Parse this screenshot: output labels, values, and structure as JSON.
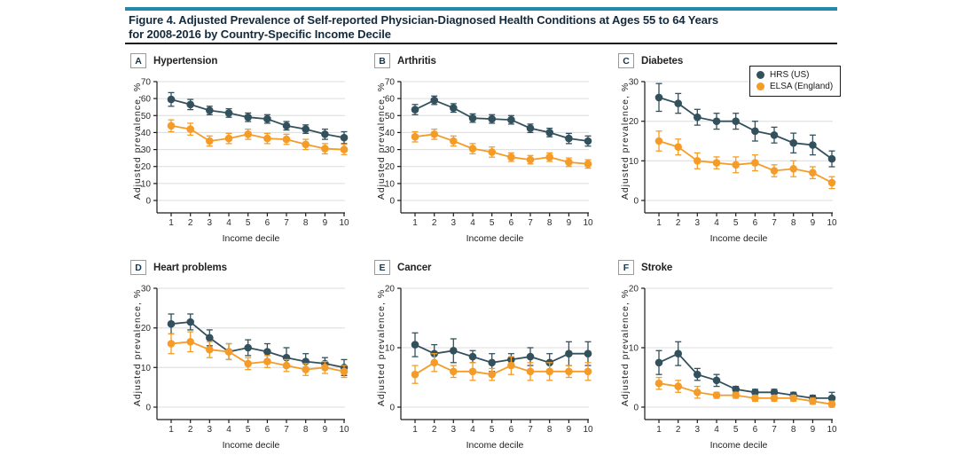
{
  "figure": {
    "title_line1": "Figure 4. Adjusted Prevalence of Self-reported Physician-Diagnosed Health Conditions at Ages 55 to 64 Years",
    "title_line2": "for 2008-2016 by Country-Specific Income Decile"
  },
  "colors": {
    "header_rule": "#2389AC",
    "hrs_us": "#33515D",
    "elsa_england": "#F59C28",
    "gridline": "#DCDCDC"
  },
  "legend": {
    "position": "top-right-of-panel-C",
    "entries": [
      {
        "label": "HRS (US)",
        "color": "#33515D"
      },
      {
        "label": "ELSA (England)",
        "color": "#F59C28"
      }
    ]
  },
  "chart_data": [
    {
      "type": "line",
      "panel_label": "A",
      "title": "Hypertension",
      "xlabel": "Income decile",
      "ylabel": "Adjusted prevalence, %",
      "x": [
        1,
        2,
        3,
        4,
        5,
        6,
        7,
        8,
        9,
        10
      ],
      "ylim": [
        0,
        70
      ],
      "yticks": [
        0,
        10,
        20,
        30,
        40,
        50,
        60,
        70
      ],
      "series": [
        {
          "name": "HRS (US)",
          "color": "#33515D",
          "values": [
            59.5,
            56.5,
            53,
            51.5,
            49,
            48,
            44,
            42,
            39,
            37
          ],
          "ci": [
            4,
            3,
            2.5,
            2.5,
            2.5,
            2.5,
            2.5,
            2.5,
            3,
            3.5
          ]
        },
        {
          "name": "ELSA (England)",
          "color": "#F59C28",
          "values": [
            44,
            42,
            35,
            36.5,
            39,
            36.5,
            36,
            33,
            30.5,
            30
          ],
          "ci": [
            3.5,
            3.5,
            3,
            3,
            3,
            3,
            3,
            3,
            3,
            3
          ]
        }
      ]
    },
    {
      "type": "line",
      "panel_label": "B",
      "title": "Arthritis",
      "xlabel": "Income decile",
      "ylabel": "Adjusted prevalence, %",
      "x": [
        1,
        2,
        3,
        4,
        5,
        6,
        7,
        8,
        9,
        10
      ],
      "ylim": [
        0,
        70
      ],
      "yticks": [
        0,
        10,
        20,
        30,
        40,
        50,
        60,
        70
      ],
      "series": [
        {
          "name": "HRS (US)",
          "color": "#33515D",
          "values": [
            53.5,
            59,
            54.5,
            48.5,
            48,
            47.5,
            42.5,
            40,
            36.5,
            35
          ],
          "ci": [
            3,
            2.5,
            2.5,
            2.5,
            2.5,
            2.5,
            2.5,
            2.5,
            3,
            3
          ]
        },
        {
          "name": "ELSA (England)",
          "color": "#F59C28",
          "values": [
            37.5,
            39,
            35,
            30.5,
            28.5,
            25.5,
            24,
            25.5,
            22.5,
            21.5
          ],
          "ci": [
            3,
            3,
            3,
            3,
            3,
            2.5,
            2.5,
            2.5,
            2.5,
            2.5
          ]
        }
      ]
    },
    {
      "type": "line",
      "panel_label": "C",
      "title": "Diabetes",
      "xlabel": "Income decile",
      "ylabel": "Adjusted prevalence, %",
      "x": [
        1,
        2,
        3,
        4,
        5,
        6,
        7,
        8,
        9,
        10
      ],
      "ylim": [
        0,
        30
      ],
      "yticks": [
        0,
        10,
        20,
        30
      ],
      "series": [
        {
          "name": "HRS (US)",
          "color": "#33515D",
          "values": [
            26,
            24.5,
            21,
            20,
            20,
            17.5,
            16.5,
            14.5,
            14,
            10.5
          ],
          "ci": [
            3.5,
            2.5,
            2,
            2,
            2,
            2.5,
            2,
            2.5,
            2.5,
            2
          ]
        },
        {
          "name": "ELSA (England)",
          "color": "#F59C28",
          "values": [
            15,
            13.5,
            10,
            9.5,
            9,
            9.5,
            7.5,
            8,
            7,
            4.5
          ],
          "ci": [
            2.5,
            2,
            2,
            1.5,
            2,
            2,
            1.5,
            2,
            1.5,
            1.5
          ]
        }
      ]
    },
    {
      "type": "line",
      "panel_label": "D",
      "title": "Heart problems",
      "xlabel": "Income decile",
      "ylabel": "Adjusted prevalence, %",
      "x": [
        1,
        2,
        3,
        4,
        5,
        6,
        7,
        8,
        9,
        10
      ],
      "ylim": [
        0,
        30
      ],
      "yticks": [
        0,
        10,
        20,
        30
      ],
      "series": [
        {
          "name": "HRS (US)",
          "color": "#33515D",
          "values": [
            21,
            21.5,
            17.5,
            14,
            15,
            14,
            12.5,
            11.5,
            11,
            10
          ],
          "ci": [
            2.5,
            2,
            2,
            2,
            2,
            2,
            2.5,
            2,
            1.5,
            2
          ]
        },
        {
          "name": "ELSA (England)",
          "color": "#F59C28",
          "values": [
            16,
            16.5,
            14.5,
            14,
            11,
            11.5,
            10.5,
            9.5,
            10,
            9
          ],
          "ci": [
            2.5,
            2.5,
            2,
            2,
            1.5,
            1.5,
            1.5,
            1.5,
            1.5,
            1.5
          ]
        }
      ]
    },
    {
      "type": "line",
      "panel_label": "E",
      "title": "Cancer",
      "xlabel": "Income decile",
      "ylabel": "Adjusted prevalence, %",
      "x": [
        1,
        2,
        3,
        4,
        5,
        6,
        7,
        8,
        9,
        10
      ],
      "ylim": [
        0,
        20
      ],
      "yticks": [
        0,
        10,
        20
      ],
      "series": [
        {
          "name": "HRS (US)",
          "color": "#33515D",
          "values": [
            10.5,
            9,
            9.5,
            8.5,
            7.5,
            8,
            8.5,
            7.5,
            9,
            9
          ],
          "ci": [
            2,
            1.5,
            2,
            1,
            1.5,
            1,
            1.5,
            1.5,
            2,
            2
          ]
        },
        {
          "name": "ELSA (England)",
          "color": "#F59C28",
          "values": [
            5.5,
            7.5,
            6,
            6,
            5.5,
            7,
            6,
            6,
            6,
            6
          ],
          "ci": [
            1.5,
            1.5,
            1,
            1.5,
            1,
            1.5,
            1.5,
            1.5,
            1,
            1.5
          ]
        }
      ]
    },
    {
      "type": "line",
      "panel_label": "F",
      "title": "Stroke",
      "xlabel": "Income decile",
      "ylabel": "Adjusted prevalence, %",
      "x": [
        1,
        2,
        3,
        4,
        5,
        6,
        7,
        8,
        9,
        10
      ],
      "ylim": [
        0,
        20
      ],
      "yticks": [
        0,
        10,
        20
      ],
      "series": [
        {
          "name": "HRS (US)",
          "color": "#33515D",
          "values": [
            7.5,
            9,
            5.5,
            4.5,
            3,
            2.5,
            2.5,
            2,
            1.5,
            1.5
          ],
          "ci": [
            2,
            2,
            1,
            1,
            0.5,
            0.5,
            0.5,
            0.5,
            0.5,
            1
          ]
        },
        {
          "name": "ELSA (England)",
          "color": "#F59C28",
          "values": [
            4,
            3.5,
            2.5,
            2,
            2,
            1.5,
            1.5,
            1.5,
            1,
            0.5
          ],
          "ci": [
            1,
            1,
            1,
            0.5,
            0.5,
            0.5,
            0.5,
            0.5,
            0.5,
            0.5
          ]
        }
      ]
    }
  ]
}
